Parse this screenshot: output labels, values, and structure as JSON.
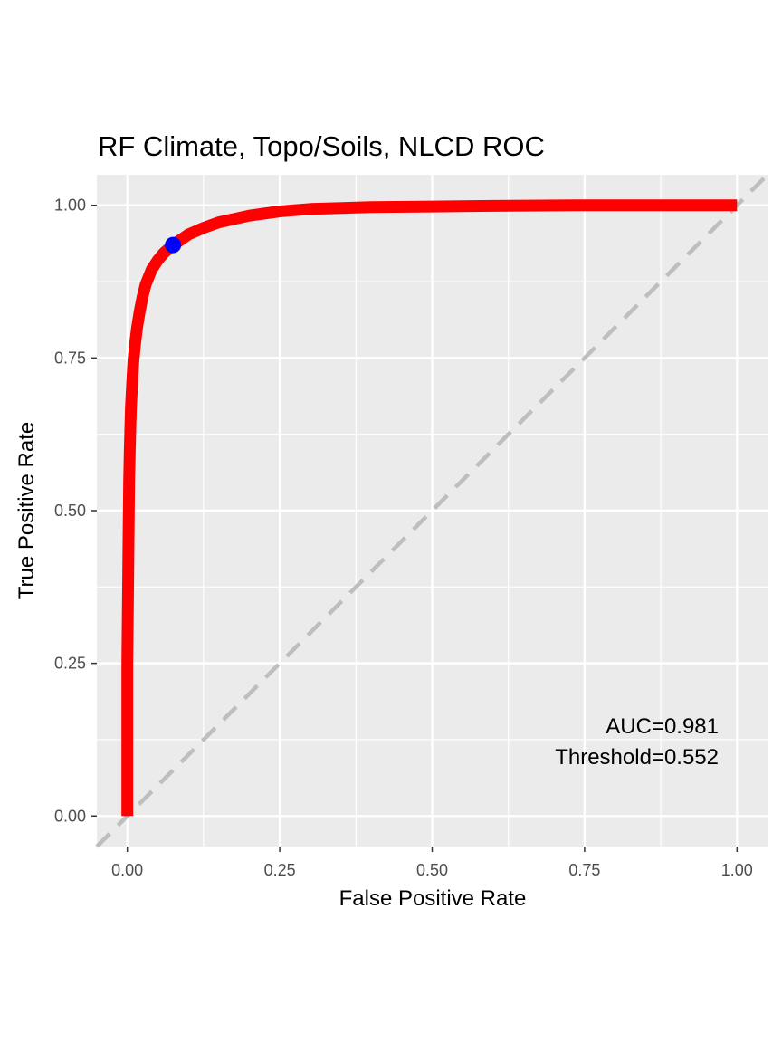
{
  "chart_data": {
    "type": "line",
    "title": "RF Climate, Topo/Soils, NLCD ROC",
    "xlabel": "False Positive Rate",
    "ylabel": "True Positive Rate",
    "xlim": [
      -0.05,
      1.05
    ],
    "ylim": [
      -0.05,
      1.05
    ],
    "x_ticks": [
      0.0,
      0.25,
      0.5,
      0.75,
      1.0
    ],
    "x_tick_labels": [
      "0.00",
      "0.25",
      "0.50",
      "0.75",
      "1.00"
    ],
    "y_ticks": [
      0.0,
      0.25,
      0.5,
      0.75,
      1.0
    ],
    "y_tick_labels": [
      "0.00",
      "0.25",
      "0.50",
      "0.75",
      "1.00"
    ],
    "grid": true,
    "series": [
      {
        "type": "line",
        "color": "#ff0000",
        "x": [
          0.0,
          0.0,
          0.002,
          0.003,
          0.004,
          0.005,
          0.006,
          0.008,
          0.01,
          0.013,
          0.016,
          0.02,
          0.025,
          0.03,
          0.04,
          0.05,
          0.06,
          0.075,
          0.09,
          0.1,
          0.125,
          0.15,
          0.2,
          0.25,
          0.3,
          0.4,
          0.5,
          0.6,
          0.75,
          0.9,
          1.0
        ],
        "y": [
          0.0,
          0.25,
          0.45,
          0.55,
          0.6,
          0.64,
          0.67,
          0.71,
          0.745,
          0.775,
          0.8,
          0.825,
          0.85,
          0.87,
          0.895,
          0.91,
          0.922,
          0.935,
          0.945,
          0.952,
          0.963,
          0.972,
          0.983,
          0.99,
          0.994,
          0.997,
          0.998,
          0.999,
          1.0,
          1.0,
          1.0
        ]
      },
      {
        "type": "reference",
        "color": "#bebebe",
        "style": "dashed",
        "x": [
          -0.05,
          1.05
        ],
        "y": [
          -0.05,
          1.05
        ]
      }
    ],
    "threshold_point": {
      "x": 0.075,
      "y": 0.935,
      "color": "#0000ff"
    },
    "annotations": [
      "AUC=0.981",
      "Threshold=0.552"
    ]
  }
}
